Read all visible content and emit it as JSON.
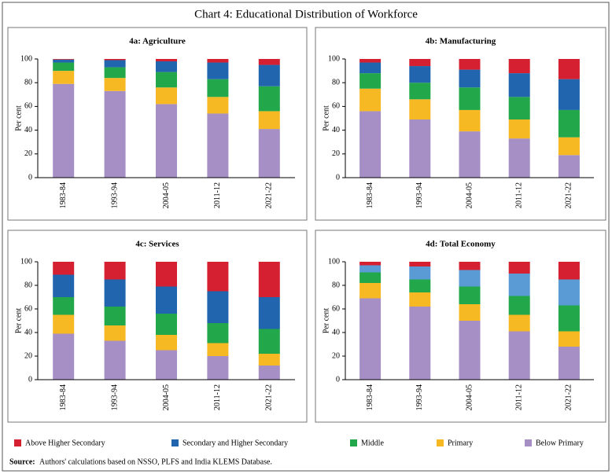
{
  "title": "Chart 4: Educational Distribution of Workforce",
  "legend": [
    {
      "name": "Below Primary",
      "color": "#a58fc5"
    },
    {
      "name": "Primary",
      "color": "#f7b923"
    },
    {
      "name": "Middle",
      "color": "#22a84a"
    },
    {
      "name": "Secondary and Higher Secondary",
      "color": "#2165ae"
    },
    {
      "name": "Above Higher Secondary",
      "color": "#d42030"
    }
  ],
  "source": {
    "label": "Source:",
    "text": "Authors' calculations based on NSSO, PLFS and India KLEMS Database."
  },
  "chart_data": [
    {
      "type": "bar",
      "stacked": true,
      "title": "4a: Agriculture",
      "y_label": "Per cent",
      "categories": [
        "1983-84",
        "1993-94",
        "2004-05",
        "2011-12",
        "2021-22"
      ],
      "ylim": [
        0,
        100
      ],
      "yticks": [
        0,
        20,
        40,
        60,
        80,
        100
      ],
      "series": [
        {
          "color": "#a58fc5",
          "values": [
            79,
            73,
            62,
            54,
            41
          ]
        },
        {
          "color": "#f7b923",
          "values": [
            11,
            11,
            14,
            14,
            15
          ]
        },
        {
          "color": "#22a84a",
          "values": [
            7,
            9,
            13,
            15,
            21
          ]
        },
        {
          "color": "#2165ae",
          "values": [
            2.5,
            6,
            9,
            14,
            18
          ]
        },
        {
          "color": "#d42030",
          "values": [
            0.5,
            1,
            2,
            3,
            5
          ]
        }
      ]
    },
    {
      "type": "bar",
      "stacked": true,
      "title": "4b: Manufacturing",
      "y_label": "Per cent",
      "categories": [
        "1983-84",
        "1993-94",
        "2004-05",
        "2011-12",
        "2021-22"
      ],
      "ylim": [
        0,
        100
      ],
      "yticks": [
        0,
        20,
        40,
        60,
        80,
        100
      ],
      "series": [
        {
          "color": "#a58fc5",
          "values": [
            56,
            49,
            39,
            33,
            19
          ]
        },
        {
          "color": "#f7b923",
          "values": [
            19,
            17,
            18,
            16,
            15
          ]
        },
        {
          "color": "#22a84a",
          "values": [
            13,
            14,
            19,
            19,
            23
          ]
        },
        {
          "color": "#2165ae",
          "values": [
            9,
            14,
            15,
            20,
            26
          ]
        },
        {
          "color": "#d42030",
          "values": [
            3,
            6,
            9,
            12,
            17
          ]
        }
      ]
    },
    {
      "type": "bar",
      "stacked": true,
      "title": "4c: Services",
      "y_label": "Per cent",
      "categories": [
        "1983-84",
        "1993-94",
        "2004-05",
        "2011-12",
        "2021-22"
      ],
      "ylim": [
        0,
        100
      ],
      "yticks": [
        0,
        20,
        40,
        60,
        80,
        100
      ],
      "series": [
        {
          "color": "#a58fc5",
          "values": [
            39,
            33,
            25,
            20,
            12
          ]
        },
        {
          "color": "#f7b923",
          "values": [
            16,
            13,
            13,
            11,
            10
          ]
        },
        {
          "color": "#22a84a",
          "values": [
            15,
            16,
            18,
            17,
            21
          ]
        },
        {
          "color": "#2165ae",
          "values": [
            19,
            23,
            23,
            27,
            27
          ]
        },
        {
          "color": "#d42030",
          "values": [
            11,
            15,
            21,
            25,
            30
          ]
        }
      ]
    },
    {
      "type": "bar",
      "stacked": true,
      "title": "4d: Total Economy",
      "y_label": "Per cent",
      "categories": [
        "1983-84",
        "1993-94",
        "2004-05",
        "2011-12",
        "2021-22"
      ],
      "ylim": [
        0,
        100
      ],
      "yticks": [
        0,
        20,
        40,
        60,
        80,
        100
      ],
      "series": [
        {
          "color": "#a58fc5",
          "values": [
            69,
            62,
            50,
            41,
            28
          ]
        },
        {
          "color": "#f7b923",
          "values": [
            13,
            12,
            14,
            14,
            13
          ]
        },
        {
          "color": "#22a84a",
          "values": [
            9,
            11,
            15,
            16,
            22
          ]
        },
        {
          "color": "#5b9bd5",
          "values": [
            6,
            11,
            14,
            19,
            22
          ]
        },
        {
          "color": "#d42030",
          "values": [
            3,
            4,
            7,
            10,
            15
          ]
        }
      ]
    }
  ]
}
